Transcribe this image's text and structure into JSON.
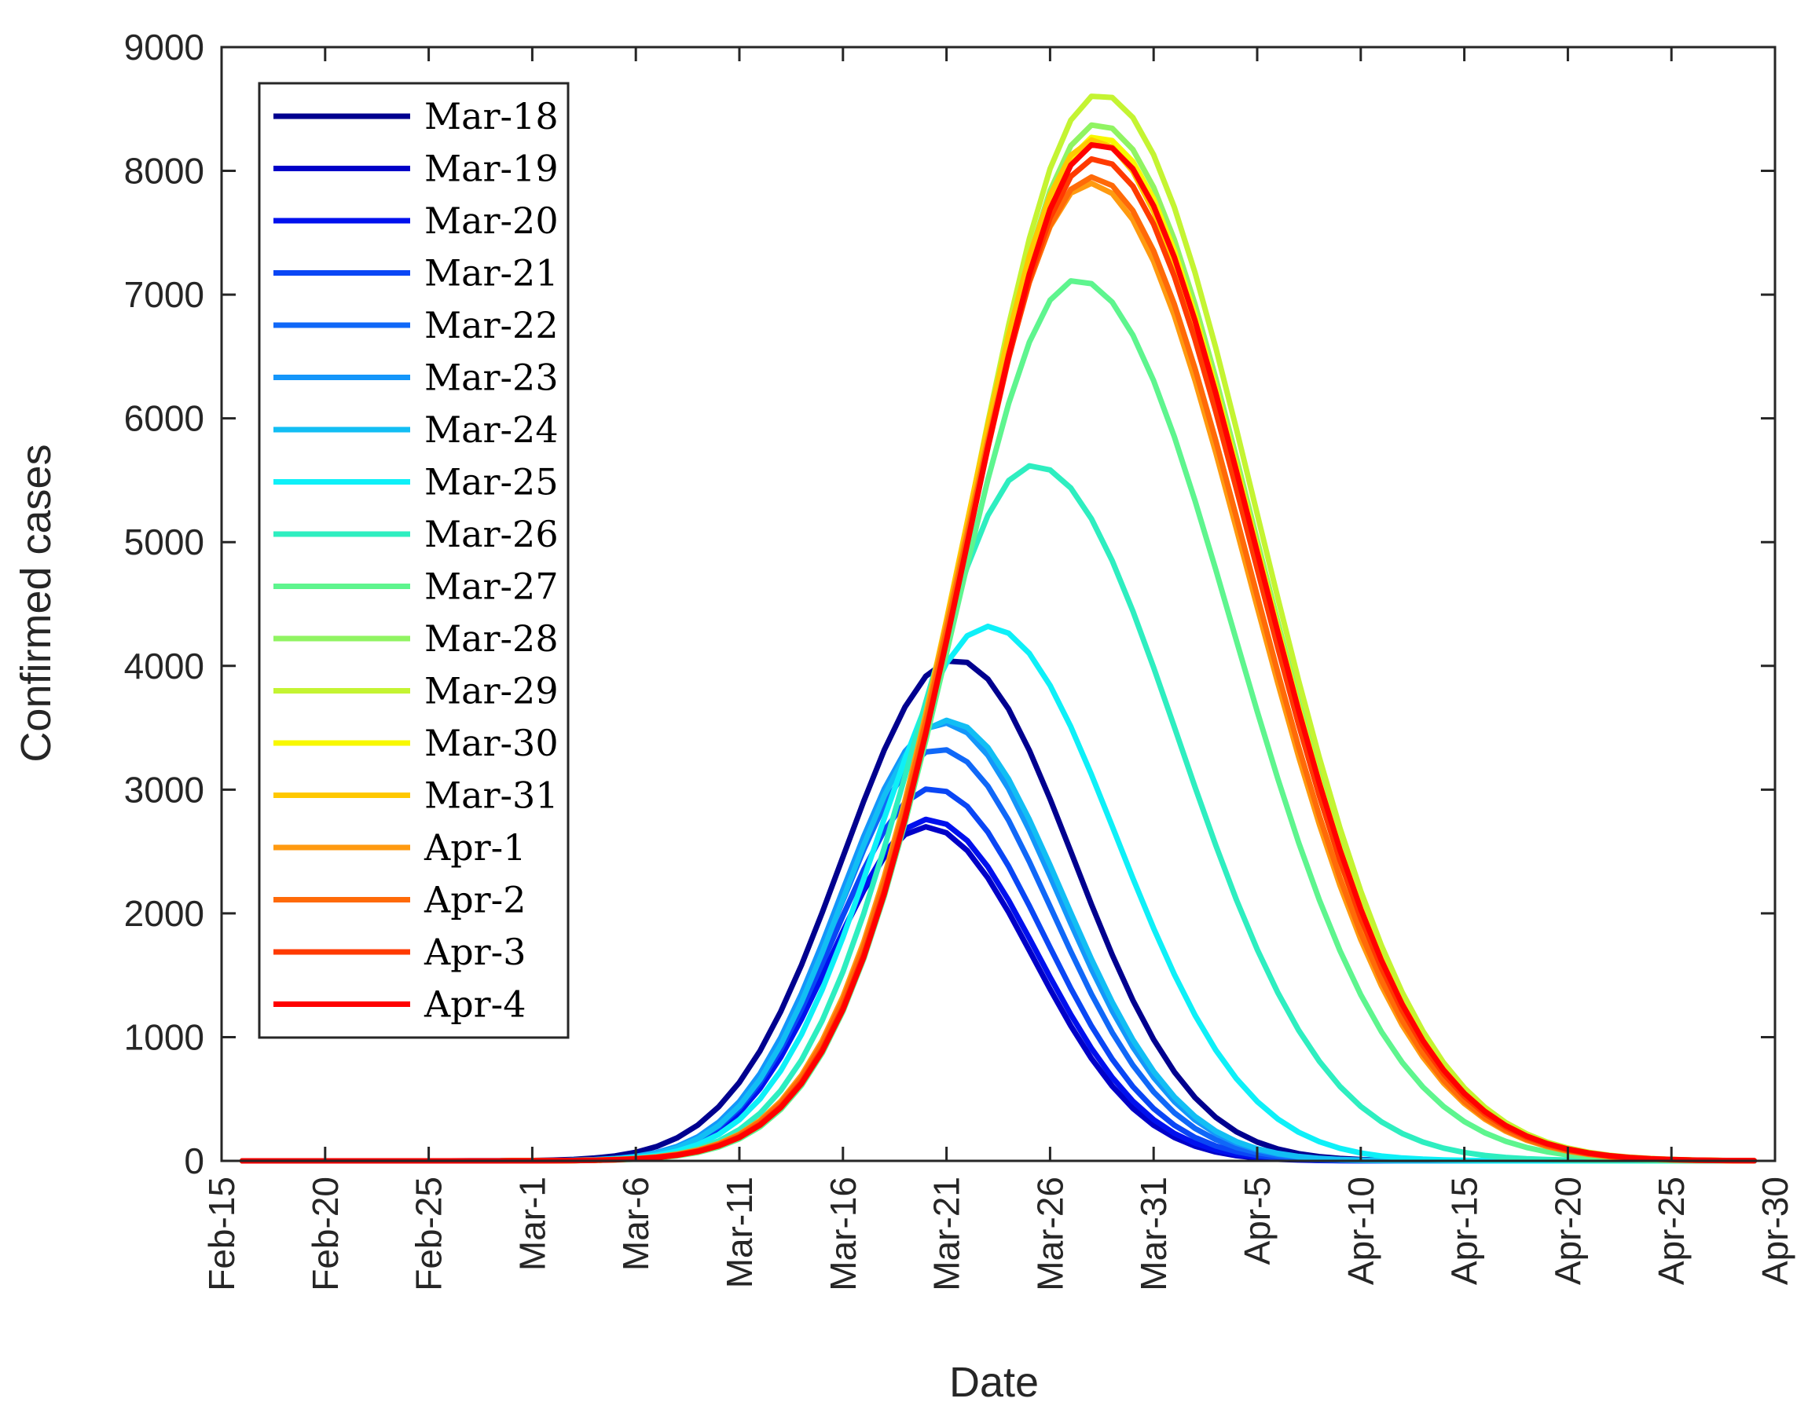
{
  "chart_data": {
    "type": "line",
    "title": "",
    "xlabel": "Date",
    "ylabel": "Confirmed cases",
    "xlim": [
      0,
      75
    ],
    "ylim": [
      0,
      9000
    ],
    "x_day_zero": "Feb-15",
    "xticks": [
      {
        "day": 0,
        "label": "Feb-15"
      },
      {
        "day": 5,
        "label": "Feb-20"
      },
      {
        "day": 10,
        "label": "Feb-25"
      },
      {
        "day": 15,
        "label": "Mar-1"
      },
      {
        "day": 20,
        "label": "Mar-6"
      },
      {
        "day": 25,
        "label": "Mar-11"
      },
      {
        "day": 30,
        "label": "Mar-16"
      },
      {
        "day": 35,
        "label": "Mar-21"
      },
      {
        "day": 40,
        "label": "Mar-26"
      },
      {
        "day": 45,
        "label": "Mar-31"
      },
      {
        "day": 50,
        "label": "Apr-5"
      },
      {
        "day": 55,
        "label": "Apr-10"
      },
      {
        "day": 60,
        "label": "Apr-15"
      },
      {
        "day": 65,
        "label": "Apr-20"
      },
      {
        "day": 70,
        "label": "Apr-25"
      },
      {
        "day": 75,
        "label": "Apr-30"
      }
    ],
    "yticks": [
      {
        "value": 0,
        "label": "0"
      },
      {
        "value": 1000,
        "label": "1000"
      },
      {
        "value": 2000,
        "label": "2000"
      },
      {
        "value": 3000,
        "label": "3000"
      },
      {
        "value": 4000,
        "label": "4000"
      },
      {
        "value": 5000,
        "label": "5000"
      },
      {
        "value": 6000,
        "label": "6000"
      },
      {
        "value": 7000,
        "label": "7000"
      },
      {
        "value": 8000,
        "label": "8000"
      },
      {
        "value": 9000,
        "label": "9000"
      }
    ],
    "x_range_days": [
      1,
      74
    ],
    "legend_position": "top-left",
    "grid": false,
    "series_shape": "asymmetric bell curves (Gaussian-like) estimated from peak day, peak value and rise/fall spreads in days",
    "series": [
      {
        "name": "Mar-18",
        "color": "#00008f",
        "peak_day": 35.4,
        "peak_value": 4050,
        "rise_spread": 5.4,
        "fall_spread": 5.7
      },
      {
        "name": "Mar-19",
        "color": "#0000c8",
        "peak_day": 34.0,
        "peak_value": 2700,
        "rise_spread": 4.6,
        "fall_spread": 5.2
      },
      {
        "name": "Mar-20",
        "color": "#0010ee",
        "peak_day": 34.1,
        "peak_value": 2760,
        "rise_spread": 4.6,
        "fall_spread": 5.3
      },
      {
        "name": "Mar-21",
        "color": "#0a46f5",
        "peak_day": 34.3,
        "peak_value": 3010,
        "rise_spread": 4.7,
        "fall_spread": 5.4
      },
      {
        "name": "Mar-22",
        "color": "#1068f8",
        "peak_day": 34.6,
        "peak_value": 3330,
        "rise_spread": 4.8,
        "fall_spread": 5.5
      },
      {
        "name": "Mar-23",
        "color": "#1496fa",
        "peak_day": 34.8,
        "peak_value": 3540,
        "rise_spread": 4.9,
        "fall_spread": 5.6
      },
      {
        "name": "Mar-24",
        "color": "#12bef4",
        "peak_day": 35.0,
        "peak_value": 3560,
        "rise_spread": 4.9,
        "fall_spread": 5.6
      },
      {
        "name": "Mar-25",
        "color": "#0ef0f8",
        "peak_day": 37.0,
        "peak_value": 4320,
        "rise_spread": 5.3,
        "fall_spread": 6.2
      },
      {
        "name": "Mar-26",
        "color": "#2eeec0",
        "peak_day": 39.2,
        "peak_value": 5620,
        "rise_spread": 5.7,
        "fall_spread": 7.0
      },
      {
        "name": "Mar-27",
        "color": "#5ef58e",
        "peak_day": 41.3,
        "peak_value": 7120,
        "rise_spread": 6.0,
        "fall_spread": 7.5
      },
      {
        "name": "Mar-28",
        "color": "#90f462",
        "peak_day": 42.3,
        "peak_value": 8380,
        "rise_spread": 6.3,
        "fall_spread": 7.6
      },
      {
        "name": "Mar-29",
        "color": "#c4f432",
        "peak_day": 42.4,
        "peak_value": 8620,
        "rise_spread": 6.3,
        "fall_spread": 7.6
      },
      {
        "name": "Mar-30",
        "color": "#f8f800",
        "peak_day": 42.3,
        "peak_value": 8280,
        "rise_spread": 6.3,
        "fall_spread": 7.6
      },
      {
        "name": "Mar-31",
        "color": "#ffc800",
        "peak_day": 42.1,
        "peak_value": 8250,
        "rise_spread": 6.3,
        "fall_spread": 7.6
      },
      {
        "name": "Apr-1",
        "color": "#ff9a10",
        "peak_day": 41.9,
        "peak_value": 7900,
        "rise_spread": 6.3,
        "fall_spread": 7.6
      },
      {
        "name": "Apr-2",
        "color": "#ff6a08",
        "peak_day": 42.0,
        "peak_value": 7950,
        "rise_spread": 6.3,
        "fall_spread": 7.6
      },
      {
        "name": "Apr-3",
        "color": "#ff3a00",
        "peak_day": 42.2,
        "peak_value": 8100,
        "rise_spread": 6.3,
        "fall_spread": 7.6
      },
      {
        "name": "Apr-4",
        "color": "#ff0000",
        "peak_day": 42.3,
        "peak_value": 8220,
        "rise_spread": 6.3,
        "fall_spread": 7.6
      }
    ]
  }
}
